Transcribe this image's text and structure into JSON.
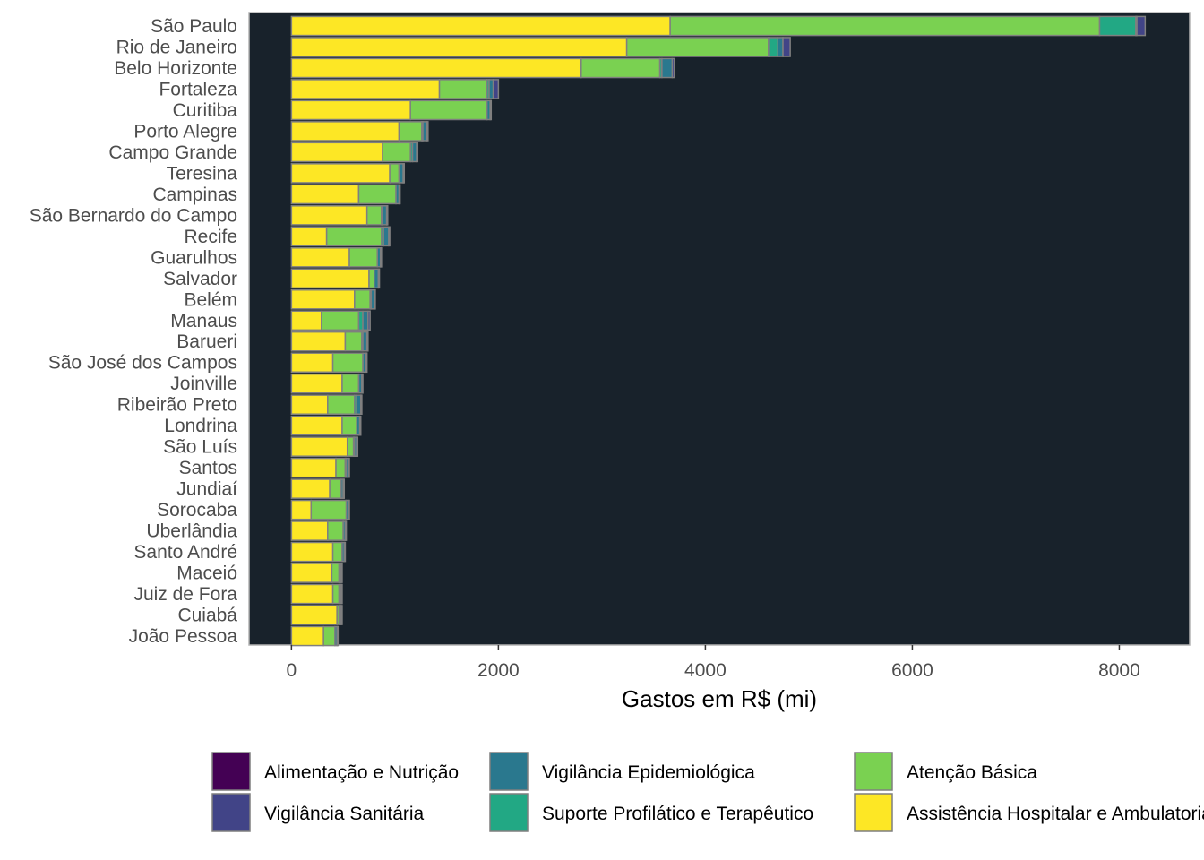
{
  "chart_data": {
    "type": "bar",
    "orientation": "horizontal",
    "stacked": true,
    "title": "",
    "xlabel": "Gastos em R$ (mi)",
    "ylabel": "",
    "xlim": [
      -410,
      8680
    ],
    "xticks": [
      0,
      2000,
      4000,
      6000,
      8000
    ],
    "grid": false,
    "legend_position": "bottom",
    "background_color": "#18222b",
    "categories": [
      "São Paulo",
      "Rio de Janeiro",
      "Belo Horizonte",
      "Fortaleza",
      "Curitiba",
      "Porto Alegre",
      "Campo Grande",
      "Teresina",
      "Campinas",
      "São Bernardo do Campo",
      "Recife",
      "Guarulhos",
      "Salvador",
      "Belém",
      "Manaus",
      "Barueri",
      "São José dos Campos",
      "Joinville",
      "Ribeirão Preto",
      "Londrina",
      "São Luís",
      "Santos",
      "Jundiaí",
      "Sorocaba",
      "Uberlândia",
      "Santo André",
      "Maceió",
      "Juiz de Fora",
      "Cuiabá",
      "João Pessoa"
    ],
    "series": [
      {
        "name": "Assistência Hospitalar e Ambulatorial",
        "color": "#fde725",
        "values": [
          3660,
          3240,
          2800,
          1430,
          1150,
          1040,
          880,
          950,
          650,
          730,
          340,
          560,
          750,
          610,
          290,
          520,
          400,
          490,
          350,
          490,
          540,
          430,
          370,
          190,
          350,
          400,
          390,
          400,
          440,
          310
        ]
      },
      {
        "name": "Atenção Básica",
        "color": "#7ad151",
        "values": [
          4150,
          1370,
          760,
          460,
          740,
          220,
          270,
          90,
          360,
          140,
          530,
          270,
          50,
          150,
          360,
          160,
          290,
          160,
          260,
          140,
          60,
          90,
          110,
          340,
          150,
          90,
          70,
          60,
          20,
          110
        ]
      },
      {
        "name": "Suporte Profilático e Terapêutico",
        "color": "#22a884",
        "values": [
          350,
          90,
          20,
          20,
          0,
          10,
          20,
          0,
          0,
          10,
          20,
          0,
          0,
          10,
          40,
          10,
          0,
          0,
          20,
          0,
          10,
          10,
          0,
          0,
          0,
          0,
          0,
          0,
          0,
          0
        ]
      },
      {
        "name": "Vigilância Epidemiológica",
        "color": "#2a788e",
        "values": [
          10,
          50,
          100,
          40,
          30,
          40,
          40,
          40,
          30,
          40,
          50,
          30,
          40,
          30,
          50,
          40,
          30,
          30,
          40,
          30,
          20,
          20,
          20,
          20,
          20,
          20,
          20,
          20,
          20,
          20
        ]
      },
      {
        "name": "Vigilância Sanitária",
        "color": "#414487",
        "values": [
          80,
          70,
          20,
          50,
          10,
          10,
          10,
          10,
          10,
          10,
          10,
          10,
          10,
          10,
          20,
          10,
          10,
          10,
          10,
          10,
          10,
          10,
          10,
          10,
          10,
          10,
          10,
          10,
          10,
          10
        ]
      },
      {
        "name": "Alimentação e Nutrição",
        "color": "#440154",
        "values": [
          0,
          0,
          0,
          0,
          0,
          0,
          0,
          0,
          0,
          0,
          0,
          0,
          0,
          0,
          0,
          0,
          0,
          0,
          0,
          0,
          0,
          0,
          0,
          0,
          0,
          0,
          0,
          0,
          0,
          0
        ]
      }
    ],
    "legend": [
      {
        "name": "Alimentação e Nutrição",
        "color": "#440154"
      },
      {
        "name": "Vigilância Sanitária",
        "color": "#414487"
      },
      {
        "name": "Vigilância Epidemiológica",
        "color": "#2a788e"
      },
      {
        "name": "Suporte Profilático e Terapêutico",
        "color": "#22a884"
      },
      {
        "name": "Atenção Básica",
        "color": "#7ad151"
      },
      {
        "name": "Assistência Hospitalar e Ambulatorial",
        "color": "#fde725"
      }
    ]
  }
}
